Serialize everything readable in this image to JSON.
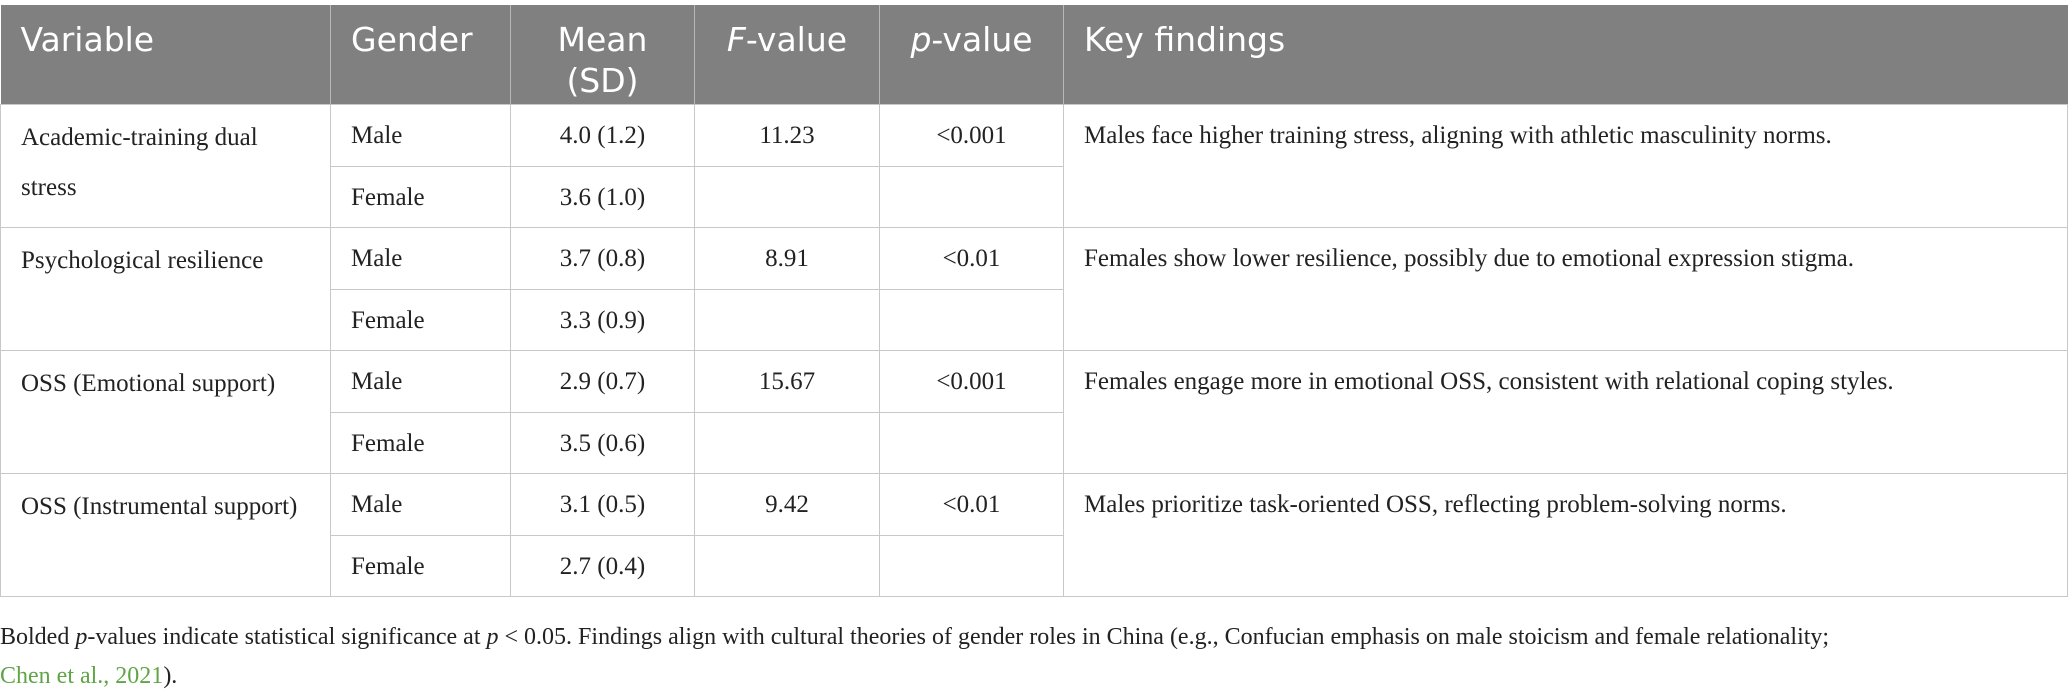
{
  "table": {
    "headers": {
      "variable": "Variable",
      "gender": "Gender",
      "mean_line1": "Mean",
      "mean_line2": "(SD)",
      "f_prefix": "F",
      "f_suffix": "-value",
      "p_prefix": "p",
      "p_suffix": "-value",
      "findings": "Key findings"
    },
    "rows": [
      {
        "variable": "Academic-training dual stress",
        "male_label": "Male",
        "male_mean": "4.0 (1.2)",
        "female_label": "Female",
        "female_mean": "3.6 (1.0)",
        "f_value": "11.23",
        "p_value": "<0.001",
        "finding": "Males face higher training stress, aligning with athletic masculinity norms."
      },
      {
        "variable": "Psychological resilience",
        "male_label": "Male",
        "male_mean": "3.7 (0.8)",
        "female_label": "Female",
        "female_mean": "3.3 (0.9)",
        "f_value": "8.91",
        "p_value": "<0.01",
        "finding": "Females show lower resilience, possibly due to emotional expression stigma."
      },
      {
        "variable": "OSS (Emotional support)",
        "male_label": "Male",
        "male_mean": "2.9 (0.7)",
        "female_label": "Female",
        "female_mean": "3.5 (0.6)",
        "f_value": "15.67",
        "p_value": "<0.001",
        "finding": "Females engage more in emotional OSS, consistent with relational coping styles."
      },
      {
        "variable": "OSS (Instrumental support)",
        "male_label": "Male",
        "male_mean": "3.1 (0.5)",
        "female_label": "Female",
        "female_mean": "2.7 (0.4)",
        "f_value": "9.42",
        "p_value": "<0.01",
        "finding": "Males prioritize task-oriented OSS, reflecting problem-solving norms."
      }
    ]
  },
  "footnote": {
    "part1": "Bolded ",
    "p_italic": "p",
    "part2": "-values indicate statistical significance at ",
    "p_italic2": "p",
    "part3": " < 0.05. Findings align with cultural theories of gender roles in China (e.g., Confucian emphasis on male stoicism and female relationality;",
    "citation": "Chen et al., 2021",
    "part4": ")."
  },
  "colors": {
    "header_bg": "#808080",
    "header_text": "#ffffff",
    "citation_link": "#5fa546"
  }
}
